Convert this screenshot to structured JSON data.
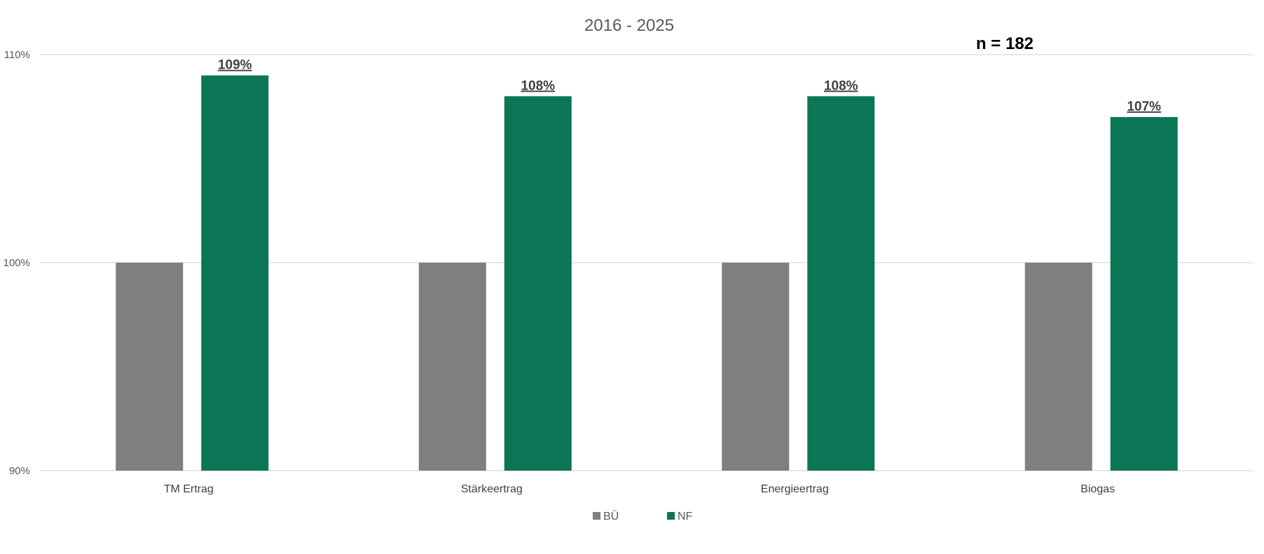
{
  "chart_data": {
    "type": "bar",
    "title": "2016 - 2025",
    "annotation": "n = 182",
    "categories": [
      "TM Ertrag",
      "Stärkeertrag",
      "Energieertrag",
      "Biogas"
    ],
    "series": [
      {
        "name": "BÜ",
        "values": [
          100,
          100,
          100,
          100
        ],
        "color": "#7f7f7f"
      },
      {
        "name": "NF",
        "values": [
          109,
          108,
          108,
          107
        ],
        "labels": [
          "109%",
          "108%",
          "108%",
          "107%"
        ],
        "color": "#0a7655"
      }
    ],
    "ylim": [
      90,
      110
    ],
    "yticks": [
      90,
      100,
      110
    ],
    "ytick_labels": [
      "90%",
      "100%",
      "110%"
    ],
    "xlabel": "",
    "ylabel": "",
    "grid": true,
    "legend": "bottom-center"
  }
}
